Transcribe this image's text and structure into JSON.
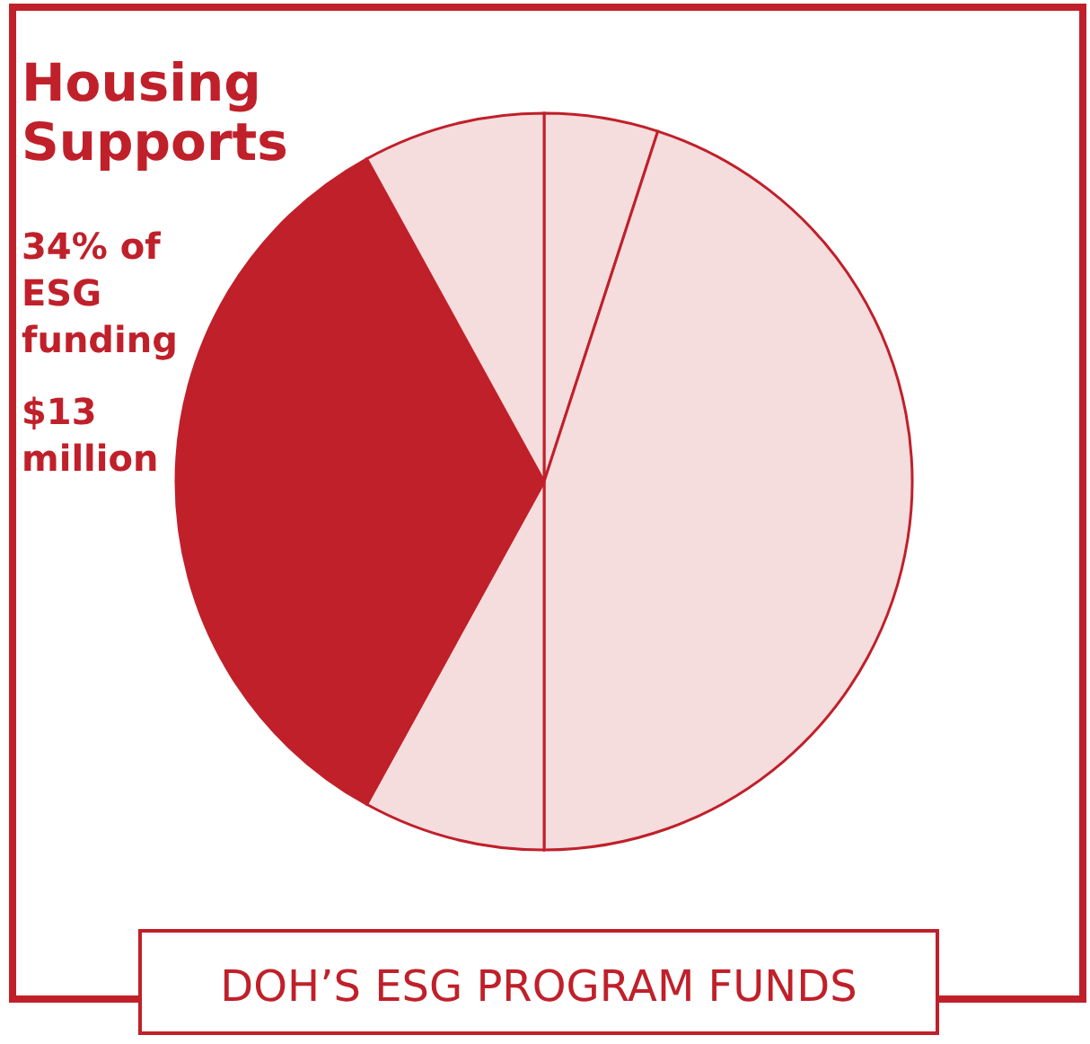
{
  "chart_data": {
    "type": "pie",
    "title": "DOH’S ESG PROGRAM FUNDS",
    "categories": [
      null,
      null,
      null,
      null,
      null
    ],
    "values": [
      5,
      45,
      8,
      34,
      8
    ],
    "colors": [
      "#f5dcdd",
      "#f5dcdd",
      "#f5dcdd",
      "#c0202a",
      "#f5dcdd"
    ],
    "annotations": [
      "Housing Supports",
      "34% of ESG funding",
      "$13 million"
    ]
  }
}
